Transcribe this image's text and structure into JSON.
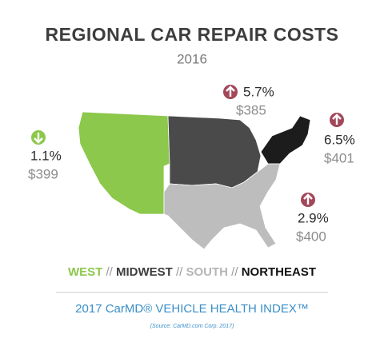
{
  "title": "REGIONAL CAR REPAIR COSTS",
  "subtitle": "2016",
  "regions": [
    {
      "name": "WEST",
      "change": "1.1%",
      "cost": "$399"
    },
    {
      "name": "MIDWEST",
      "change": "5.7%",
      "cost": "$385"
    },
    {
      "name": "SOUTH",
      "change": "2.9%",
      "cost": "$400"
    },
    {
      "name": "NORTHEAST",
      "change": "6.5%",
      "cost": "$401"
    }
  ],
  "legend_separator": "//",
  "footer": {
    "index": "2017 CarMD® VEHICLE HEALTH INDEX™",
    "source": "(Source: CarMD.com Corp. 2017)"
  }
}
